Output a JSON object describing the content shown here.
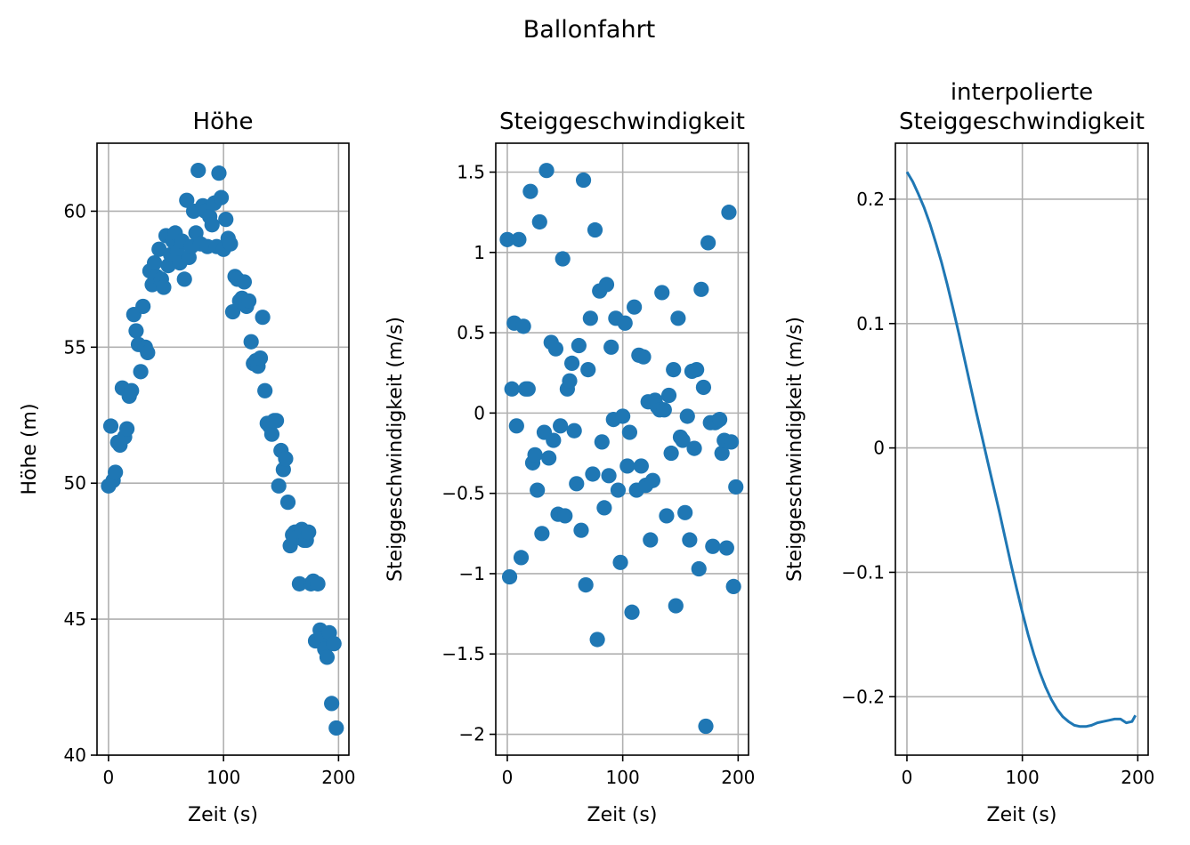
{
  "suptitle": "Ballonfahrt",
  "series_color": "#1f77b4",
  "chart_data": [
    {
      "type": "scatter",
      "title": "Höhe",
      "xlabel": "Zeit (s)",
      "ylabel": "Höhe (m)",
      "xlim": [
        -10,
        209
      ],
      "ylim": [
        40,
        62.5
      ],
      "xticks": [
        0,
        100,
        200
      ],
      "yticks": [
        40,
        45,
        50,
        55,
        60
      ],
      "grid": true,
      "x": [
        0,
        2,
        4,
        6,
        8,
        10,
        12,
        14,
        16,
        18,
        20,
        22,
        24,
        26,
        28,
        30,
        32,
        34,
        36,
        38,
        40,
        42,
        44,
        46,
        48,
        50,
        52,
        54,
        56,
        58,
        60,
        62,
        64,
        66,
        68,
        70,
        72,
        74,
        76,
        78,
        80,
        82,
        84,
        86,
        88,
        90,
        92,
        94,
        96,
        98,
        100,
        102,
        104,
        106,
        108,
        110,
        112,
        114,
        116,
        118,
        120,
        122,
        124,
        126,
        128,
        130,
        132,
        134,
        136,
        138,
        140,
        142,
        144,
        146,
        148,
        150,
        152,
        154,
        156,
        158,
        160,
        162,
        164,
        166,
        168,
        170,
        172,
        174,
        176,
        178,
        180,
        182,
        184,
        186,
        188,
        190,
        192,
        194,
        196,
        198
      ],
      "y": [
        49.9,
        52.1,
        50.1,
        50.4,
        51.5,
        51.4,
        53.5,
        51.7,
        52.0,
        53.2,
        53.4,
        56.2,
        55.6,
        55.1,
        54.1,
        56.5,
        55.0,
        54.8,
        57.8,
        57.3,
        58.1,
        57.6,
        58.6,
        57.5,
        57.2,
        59.1,
        58.0,
        58.4,
        58.9,
        59.2,
        58.5,
        58.1,
        58.9,
        57.5,
        60.4,
        58.3,
        58.7,
        60.0,
        59.2,
        61.5,
        58.8,
        60.2,
        60.0,
        58.7,
        59.8,
        59.5,
        60.3,
        58.7,
        61.4,
        60.5,
        58.6,
        59.7,
        59.0,
        58.8,
        56.3,
        57.6,
        57.5,
        56.7,
        56.8,
        57.4,
        56.5,
        56.7,
        55.2,
        54.4,
        54.5,
        54.3,
        54.6,
        56.1,
        53.4,
        52.2,
        52.1,
        51.8,
        52.3,
        52.3,
        49.9,
        51.2,
        50.5,
        50.9,
        49.3,
        47.7,
        48.1,
        48.2,
        48.0,
        46.3,
        48.3,
        47.9,
        47.9,
        48.2,
        46.3,
        46.4,
        44.2,
        46.3,
        44.6,
        44.3,
        43.9,
        43.6,
        44.5,
        41.9,
        44.1,
        41.0
      ]
    },
    {
      "type": "scatter",
      "title": "Steiggeschwindigkeit",
      "xlabel": "Zeit (s)",
      "ylabel": "Steiggeschwindigkeit (m/s)",
      "xlim": [
        -10,
        209
      ],
      "ylim": [
        -2.13,
        1.68
      ],
      "xticks": [
        0,
        100,
        200
      ],
      "yticks": [
        -2.0,
        -1.5,
        -1.0,
        -0.5,
        0.0,
        0.5,
        1.0,
        1.5
      ],
      "grid": true,
      "x": [
        0,
        2,
        4,
        6,
        8,
        10,
        12,
        14,
        16,
        18,
        20,
        22,
        24,
        26,
        28,
        30,
        32,
        34,
        36,
        38,
        40,
        42,
        44,
        46,
        48,
        50,
        52,
        54,
        56,
        58,
        60,
        62,
        64,
        66,
        68,
        70,
        72,
        74,
        76,
        78,
        80,
        82,
        84,
        86,
        88,
        90,
        92,
        94,
        96,
        98,
        100,
        102,
        104,
        106,
        108,
        110,
        112,
        114,
        116,
        118,
        120,
        122,
        124,
        126,
        128,
        130,
        132,
        134,
        136,
        138,
        140,
        142,
        144,
        146,
        148,
        150,
        152,
        154,
        156,
        158,
        160,
        162,
        164,
        166,
        168,
        170,
        172,
        174,
        176,
        178,
        180,
        182,
        184,
        186,
        188,
        190,
        192,
        194,
        196,
        198
      ],
      "y": [
        1.08,
        -1.02,
        0.15,
        0.56,
        -0.08,
        1.08,
        -0.9,
        0.54,
        0.15,
        0.15,
        1.38,
        -0.31,
        -0.26,
        -0.48,
        1.19,
        -0.75,
        -0.12,
        1.51,
        -0.28,
        0.44,
        -0.17,
        0.4,
        -0.63,
        -0.08,
        0.96,
        -0.64,
        0.15,
        0.2,
        0.31,
        -0.11,
        -0.44,
        0.42,
        -0.73,
        1.45,
        -1.07,
        0.27,
        0.59,
        -0.38,
        1.14,
        -1.41,
        0.76,
        -0.18,
        -0.59,
        0.8,
        -0.39,
        0.41,
        -0.04,
        0.59,
        -0.48,
        -0.93,
        -0.02,
        0.56,
        -0.33,
        -0.12,
        -1.24,
        0.66,
        -0.48,
        0.36,
        -0.33,
        0.35,
        -0.45,
        0.07,
        -0.79,
        -0.42,
        0.08,
        0.04,
        0.02,
        0.75,
        0.02,
        -0.64,
        0.11,
        -0.25,
        0.27,
        -1.2,
        0.59,
        -0.15,
        -0.17,
        -0.62,
        -0.02,
        -0.79,
        0.26,
        -0.22,
        0.27,
        -0.97,
        0.77,
        0.16,
        -1.95,
        1.06,
        -0.06,
        -0.83,
        -0.06,
        -0.05,
        -0.04,
        -0.25,
        -0.17,
        -0.84,
        1.25,
        -0.18,
        -1.08,
        -0.46
      ]
    },
    {
      "type": "line",
      "title": "interpolierte\nSteiggeschwindigkeit",
      "xlabel": "Zeit (s)",
      "ylabel": "Steiggeschwindigkeit (m/s)",
      "xlim": [
        -10,
        209
      ],
      "ylim": [
        -0.247,
        0.245
      ],
      "xticks": [
        0,
        100,
        200
      ],
      "yticks": [
        -0.2,
        -0.1,
        0.0,
        0.1,
        0.2
      ],
      "grid": true,
      "x": [
        0,
        5,
        10,
        15,
        20,
        25,
        30,
        35,
        40,
        45,
        50,
        55,
        60,
        65,
        70,
        75,
        80,
        85,
        90,
        95,
        100,
        105,
        110,
        115,
        120,
        125,
        130,
        135,
        140,
        145,
        150,
        155,
        160,
        165,
        170,
        175,
        180,
        185,
        190,
        195,
        198
      ],
      "y": [
        0.222,
        0.214,
        0.204,
        0.193,
        0.18,
        0.165,
        0.149,
        0.131,
        0.112,
        0.092,
        0.071,
        0.05,
        0.029,
        0.009,
        -0.011,
        -0.031,
        -0.051,
        -0.072,
        -0.093,
        -0.113,
        -0.132,
        -0.15,
        -0.166,
        -0.18,
        -0.192,
        -0.202,
        -0.21,
        -0.216,
        -0.22,
        -0.223,
        -0.224,
        -0.224,
        -0.223,
        -0.221,
        -0.22,
        -0.219,
        -0.218,
        -0.218,
        -0.221,
        -0.22,
        -0.215
      ]
    }
  ]
}
